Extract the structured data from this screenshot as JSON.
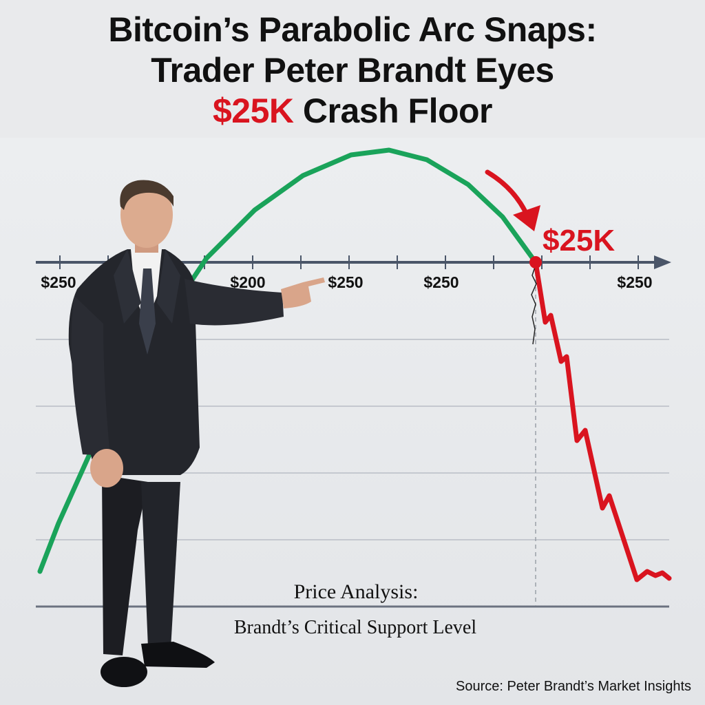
{
  "headline": {
    "line1": "Bitcoin’s Parabolic Arc Snaps:",
    "line2": "Trader Peter Brandt Eyes",
    "line3_highlight": "$25K",
    "line3_rest": " Crash Floor"
  },
  "chart_data": {
    "type": "line",
    "x_tick_labels": [
      "$250",
      "$200",
      "$250",
      "$250",
      "$250"
    ],
    "marker_label": "$25K",
    "series": [
      {
        "role": "parabolic-rise",
        "color": "#1aa35a",
        "points": [
          [
            58,
            830
          ],
          [
            85,
            760
          ],
          [
            130,
            660
          ],
          [
            180,
            560
          ],
          [
            240,
            465
          ],
          [
            300,
            375
          ],
          [
            370,
            305
          ],
          [
            440,
            255
          ],
          [
            510,
            225
          ],
          [
            565,
            218
          ],
          [
            620,
            232
          ],
          [
            680,
            268
          ],
          [
            730,
            315
          ],
          [
            778,
            381
          ]
        ]
      },
      {
        "role": "crash",
        "color": "#d9141f",
        "points": [
          [
            778,
            381
          ],
          [
            792,
            468
          ],
          [
            800,
            458
          ],
          [
            815,
            525
          ],
          [
            823,
            518
          ],
          [
            838,
            640
          ],
          [
            850,
            625
          ],
          [
            875,
            738
          ],
          [
            885,
            720
          ],
          [
            925,
            842
          ],
          [
            940,
            830
          ],
          [
            952,
            836
          ],
          [
            962,
            832
          ],
          [
            972,
            840
          ]
        ]
      }
    ],
    "gridlines": true,
    "colors": {
      "rise": "#1aa35a",
      "crash": "#d9141f",
      "axis": "#4a5568",
      "grid": "#c4c8cf"
    }
  },
  "captions": {
    "line1": "Price Analysis:",
    "line2": "Brandt’s Critical Support Level"
  },
  "source": "Source: Peter Brandt’s Market Insights",
  "figure": {
    "description": "man-in-suit-pointing",
    "icon": "person-icon"
  }
}
